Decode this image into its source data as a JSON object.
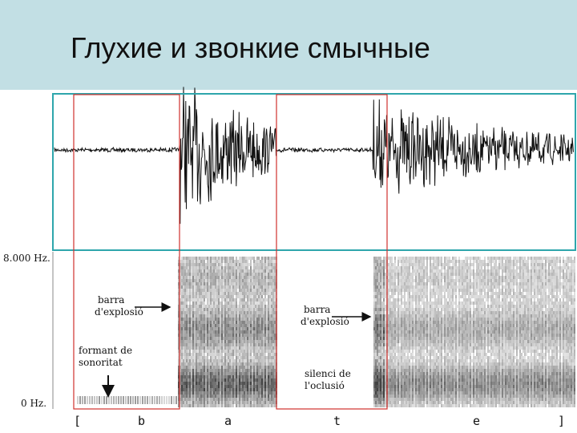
{
  "header": {
    "title": "Глухие и звонкие смычные"
  },
  "axis": {
    "top": "8.000 Hz.",
    "bottom": "0 Hz."
  },
  "annotations": [
    {
      "lines": [
        "barra",
        "d'explosió"
      ]
    },
    {
      "lines": [
        "barra",
        "d'explosió"
      ]
    },
    {
      "lines": [
        "formant de",
        "sonoritat"
      ]
    },
    {
      "lines": [
        "silenci de",
        "l'oclusió"
      ]
    }
  ],
  "transcription": [
    "[",
    "b",
    "a",
    "t",
    "e",
    "]"
  ]
}
